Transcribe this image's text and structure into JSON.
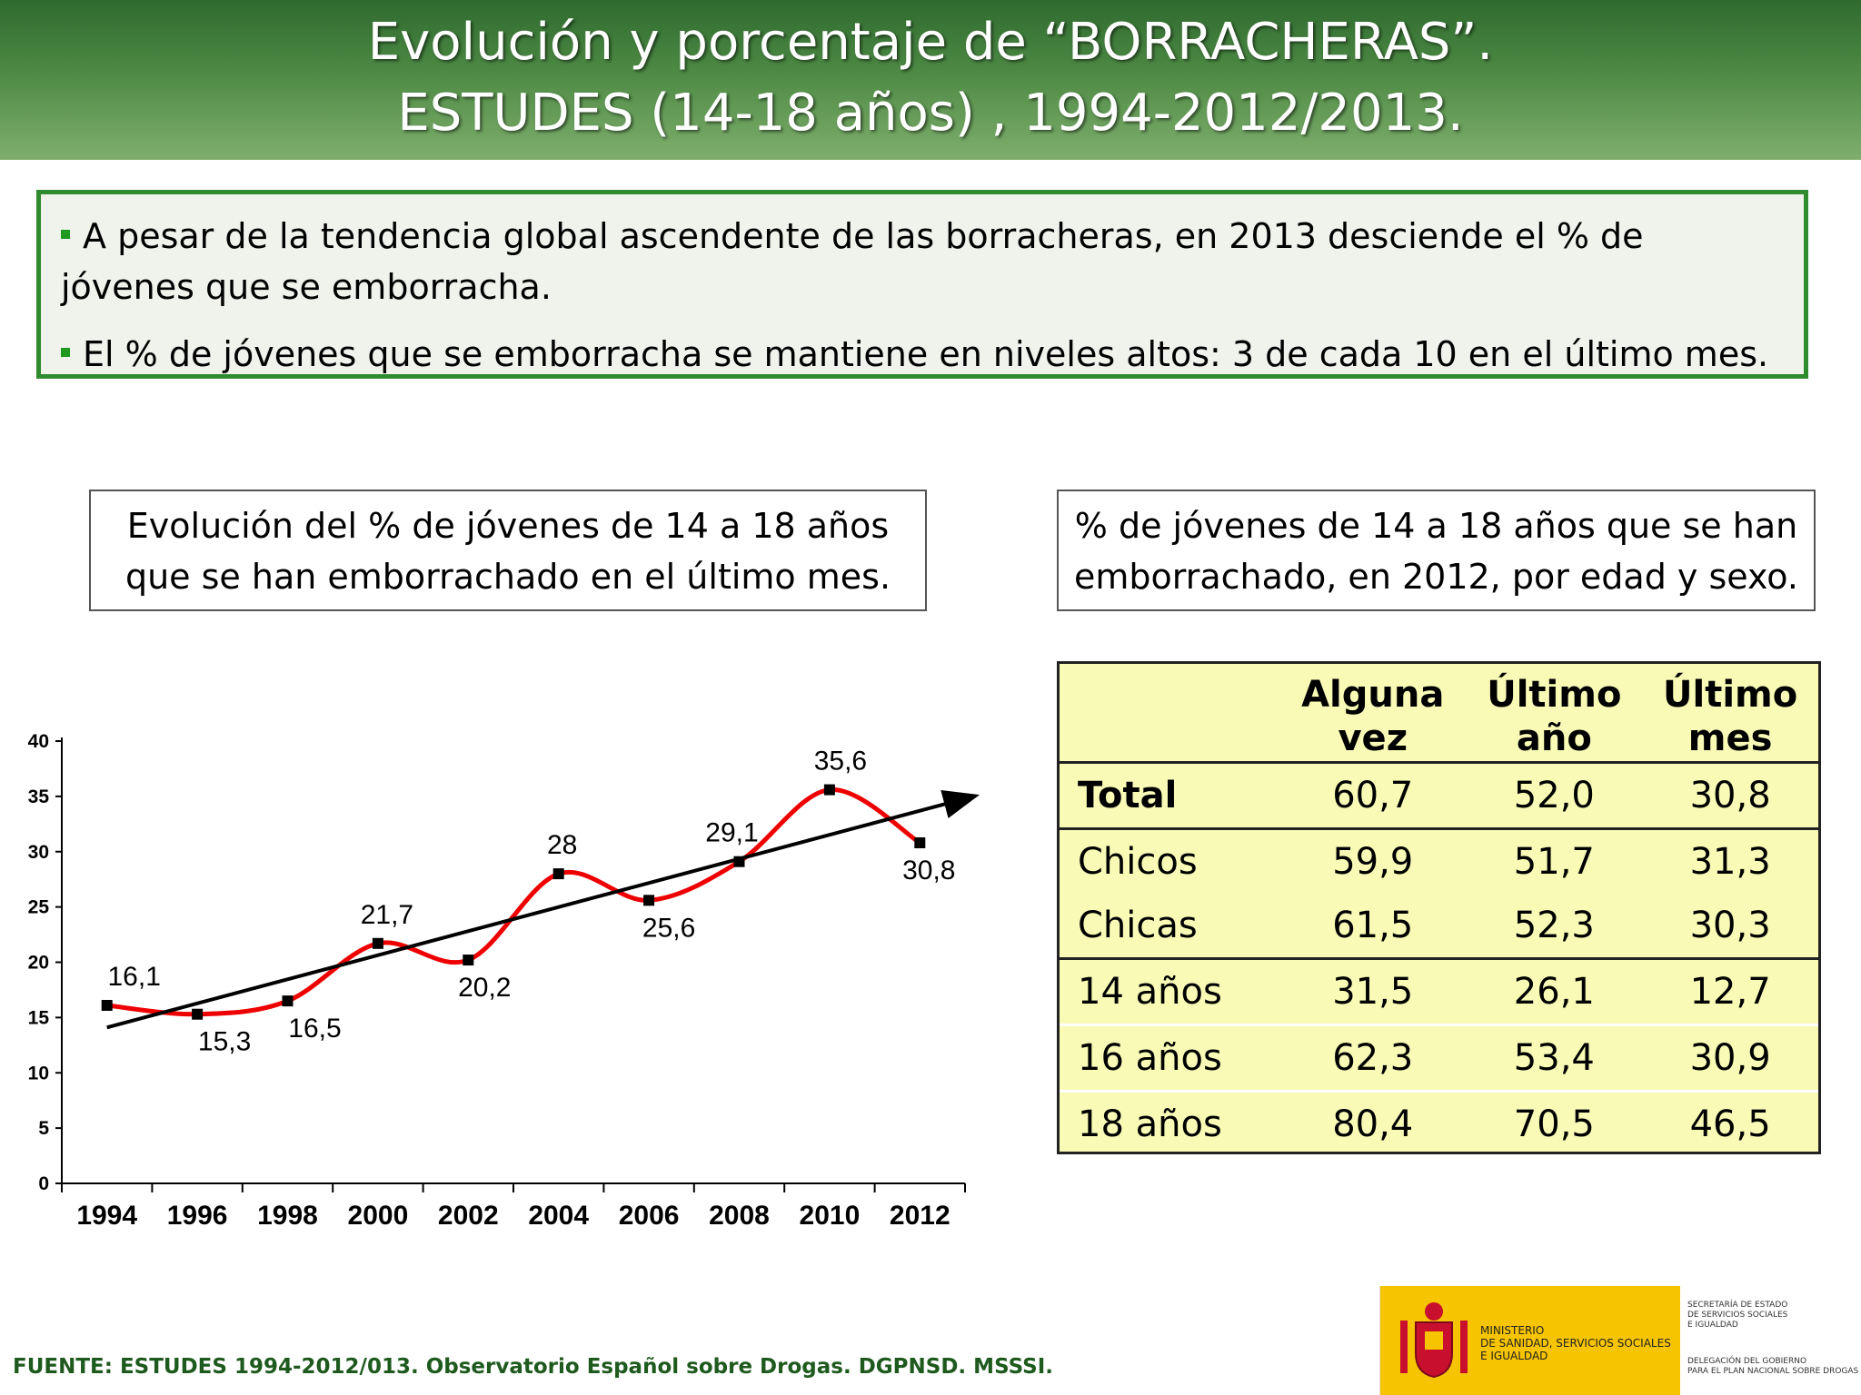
{
  "header": {
    "line1": "Evolución y porcentaje de “BORRACHERAS”.",
    "line2": "ESTUDES (14-18 años) , 1994-2012/2013."
  },
  "bullets": [
    "A pesar de la tendencia global ascendente de las borracheras, en 2013 desciende el % de jóvenes que se emborracha.",
    "El % de jóvenes que se emborracha se mantiene en niveles altos: 3 de cada 10 en el último mes."
  ],
  "captions": {
    "left_l1": "Evolución del % de jóvenes de 14 a 18 años",
    "left_l2": "que se han emborrachado en el último mes.",
    "right_l1": "% de jóvenes de 14 a 18 años que se han",
    "right_l2": "emborrachado, en 2012, por edad y sexo."
  },
  "chart_data": [
    {
      "type": "line",
      "title": "Evolución del % de jóvenes de 14 a 18 años que se han emborrachado en el último mes.",
      "x": [
        "1994",
        "1996",
        "1998",
        "2000",
        "2002",
        "2004",
        "2006",
        "2008",
        "2010",
        "2012"
      ],
      "series": [
        {
          "values": [
            16.1,
            15.3,
            16.5,
            21.7,
            20.2,
            28,
            25.6,
            29.1,
            35.6,
            30.8
          ],
          "color": "#ee0000"
        }
      ],
      "data_labels": [
        "16,1",
        "15,3",
        "16,5",
        "21,7",
        "20,2",
        "28",
        "25,6",
        "29,1",
        "35,6",
        "30,8"
      ],
      "y_ticks": [
        "0",
        "5",
        "10",
        "15",
        "20",
        "25",
        "30",
        "35",
        "40"
      ],
      "ylim": [
        0,
        40
      ],
      "trendline": {
        "start": 14.1,
        "end": 33.7,
        "color": "#000000",
        "arrow": true
      },
      "grid": false,
      "legend": "none"
    },
    {
      "type": "table",
      "title": "% de jóvenes de 14 a 18 años que se han emborrachado, en 2012, por edad y sexo.",
      "columns": [
        "",
        "Alguna vez",
        "Último año",
        "Último mes"
      ],
      "rows": [
        {
          "label": "Total",
          "values": [
            "60,7",
            "52,0",
            "30,8"
          ]
        },
        {
          "label": "Chicos",
          "values": [
            "59,9",
            "51,7",
            "31,3"
          ]
        },
        {
          "label": "Chicas",
          "values": [
            "61,5",
            "52,3",
            "30,3"
          ]
        },
        {
          "label": "14 años",
          "values": [
            "31,5",
            "26,1",
            "12,7"
          ]
        },
        {
          "label": "16 años",
          "values": [
            "62,3",
            "53,4",
            "30,9"
          ]
        },
        {
          "label": "18 años",
          "values": [
            "80,4",
            "70,5",
            "46,5"
          ]
        }
      ]
    }
  ],
  "table": {
    "head": {
      "c1_l1": "Alguna",
      "c1_l2": "vez",
      "c2_l1": "Último",
      "c2_l2": "año",
      "c3_l1": "Último",
      "c3_l2": "mes"
    }
  },
  "footer": {
    "source": "FUENTE: ESTUDES 1994-2012/013. Observatorio Español sobre Drogas. DGPNSD. MSSSI.",
    "logo_ministry": [
      "MINISTERIO",
      "DE SANIDAD, SERVICIOS SOCIALES",
      "E IGUALDAD"
    ],
    "logo_right_top": [
      "SECRETARÍA DE ESTADO",
      "DE SERVICIOS SOCIALES",
      "E IGUALDAD"
    ],
    "logo_right_bottom": [
      "DELEGACIÓN DEL GOBIERNO",
      "PARA EL PLAN NACIONAL SOBRE DROGAS"
    ]
  },
  "colors": {
    "header_green": "#3e7a3a",
    "border_green": "#2e8b2e",
    "table_bg": "#f8fab6",
    "line_red": "#ee0000"
  }
}
